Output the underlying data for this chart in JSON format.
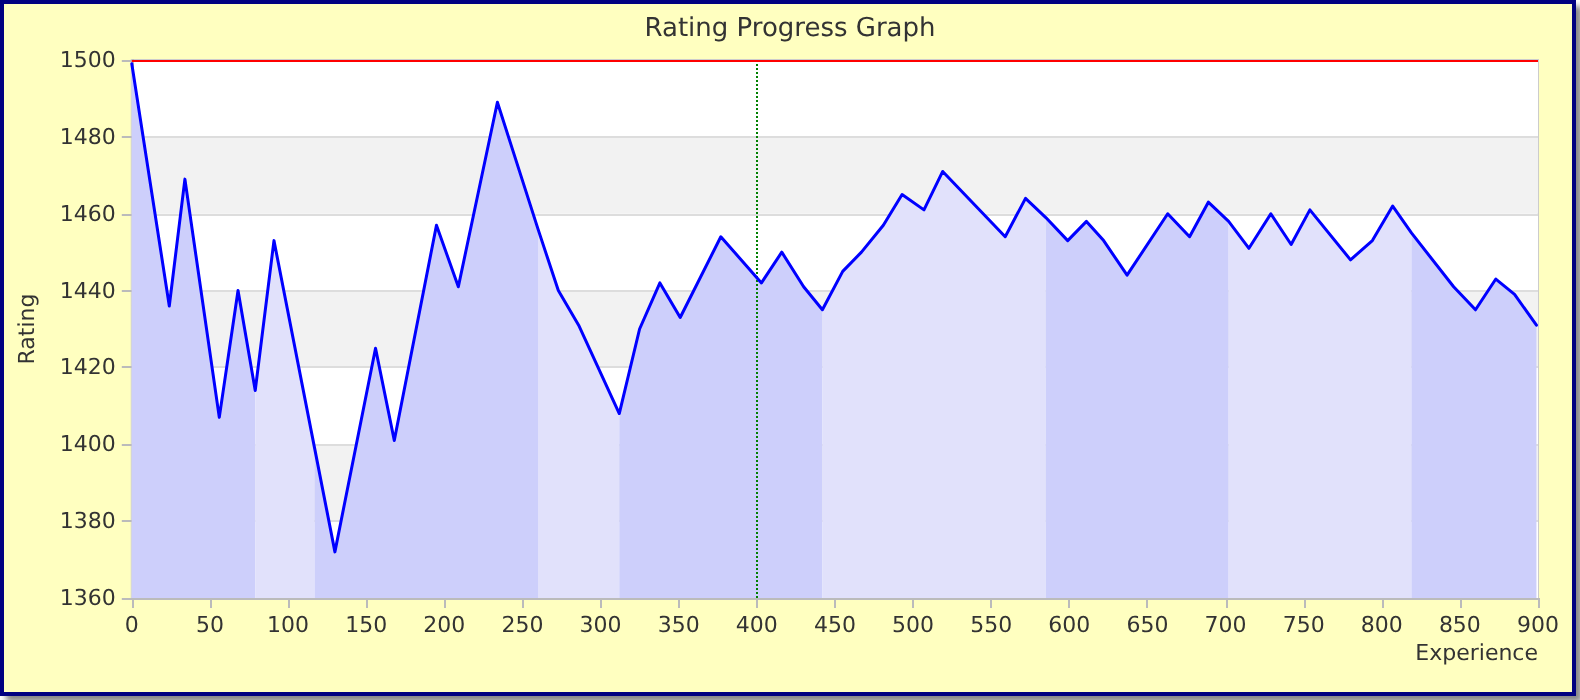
{
  "chart_data": {
    "type": "area",
    "title": "Rating Progress Graph",
    "xlabel": "Experience",
    "ylabel": "Rating",
    "series": [
      {
        "color": "#cdcffb",
        "x": [
          0,
          24,
          34,
          56,
          68,
          79
        ],
        "values": [
          1499,
          1436,
          1469,
          1407,
          1440,
          1414
        ]
      },
      {
        "color": "#e1e1fb",
        "x": [
          79,
          91,
          117
        ],
        "values": [
          1414,
          1453,
          1399
        ]
      },
      {
        "color": "#cdcffb",
        "x": [
          117,
          130,
          156,
          168,
          195,
          209,
          234,
          260
        ],
        "values": [
          1399,
          1372,
          1425,
          1401,
          1457,
          1441,
          1489,
          1456
        ]
      },
      {
        "color": "#e1e1fb",
        "x": [
          260,
          273,
          286,
          312
        ],
        "values": [
          1456,
          1440,
          1431,
          1408
        ]
      },
      {
        "color": "#cdcffb",
        "x": [
          312,
          325,
          338,
          351,
          377,
          403,
          416,
          430,
          442
        ],
        "values": [
          1408,
          1430,
          1442,
          1433,
          1454,
          1442,
          1450,
          1441,
          1435
        ]
      },
      {
        "color": "#e1e1fb",
        "x": [
          442,
          455,
          467,
          481,
          493,
          507,
          519,
          559,
          572,
          585
        ],
        "values": [
          1435,
          1445,
          1450,
          1457,
          1465,
          1461,
          1471,
          1454,
          1464,
          1459
        ]
      },
      {
        "color": "#cdcffb",
        "x": [
          585,
          599,
          611,
          622,
          637,
          663,
          677,
          689,
          702
        ],
        "values": [
          1459,
          1453,
          1458,
          1453,
          1444,
          1460,
          1454,
          1463,
          1458
        ]
      },
      {
        "color": "#e1e1fb",
        "x": [
          702,
          715,
          729,
          742,
          754,
          780,
          794,
          807,
          819
        ],
        "values": [
          1458,
          1451,
          1460,
          1452,
          1461,
          1448,
          1453,
          1462,
          1455
        ]
      },
      {
        "color": "#cdcffb",
        "x": [
          819,
          846,
          860,
          873,
          885,
          899
        ],
        "values": [
          1455,
          1441,
          1435,
          1443,
          1439,
          1431
        ]
      },
      {
        "type": "line",
        "color": "#0000ff",
        "x": [
          0,
          24,
          34,
          56,
          68,
          79,
          91,
          117,
          130,
          156,
          168,
          195,
          209,
          234,
          260,
          273,
          286,
          312,
          325,
          338,
          351,
          377,
          403,
          416,
          430,
          442,
          455,
          467,
          481,
          493,
          507,
          519,
          559,
          572,
          585,
          599,
          611,
          622,
          637,
          663,
          677,
          689,
          702,
          715,
          729,
          742,
          754,
          780,
          794,
          807,
          819,
          846,
          860,
          873,
          885,
          899
        ],
        "values": [
          1499,
          1436,
          1469,
          1407,
          1440,
          1414,
          1453,
          1399,
          1372,
          1425,
          1401,
          1457,
          1441,
          1489,
          1456,
          1440,
          1431,
          1408,
          1430,
          1442,
          1433,
          1454,
          1442,
          1450,
          1441,
          1435,
          1445,
          1450,
          1457,
          1465,
          1461,
          1471,
          1454,
          1464,
          1459,
          1453,
          1458,
          1453,
          1444,
          1460,
          1454,
          1463,
          1458,
          1451,
          1460,
          1452,
          1461,
          1448,
          1453,
          1462,
          1455,
          1441,
          1435,
          1443,
          1439,
          1431
        ]
      }
    ],
    "xlim": [
      0,
      900
    ],
    "xticks": [
      0,
      50,
      100,
      150,
      200,
      250,
      300,
      350,
      400,
      450,
      500,
      550,
      600,
      650,
      700,
      750,
      800,
      850,
      900
    ],
    "ylim": [
      1360,
      1500
    ],
    "yticks": [
      1360,
      1380,
      1400,
      1420,
      1440,
      1460,
      1480,
      1500
    ],
    "grid": "y",
    "marker": "none",
    "line_style": "solid",
    "ref_lines": [
      {
        "axis": "x",
        "value": 400,
        "color": "#008000",
        "line_style": "dotted"
      },
      {
        "axis": "y",
        "value": 1500,
        "color": "#ff0000",
        "line_style": "solid"
      }
    ]
  }
}
